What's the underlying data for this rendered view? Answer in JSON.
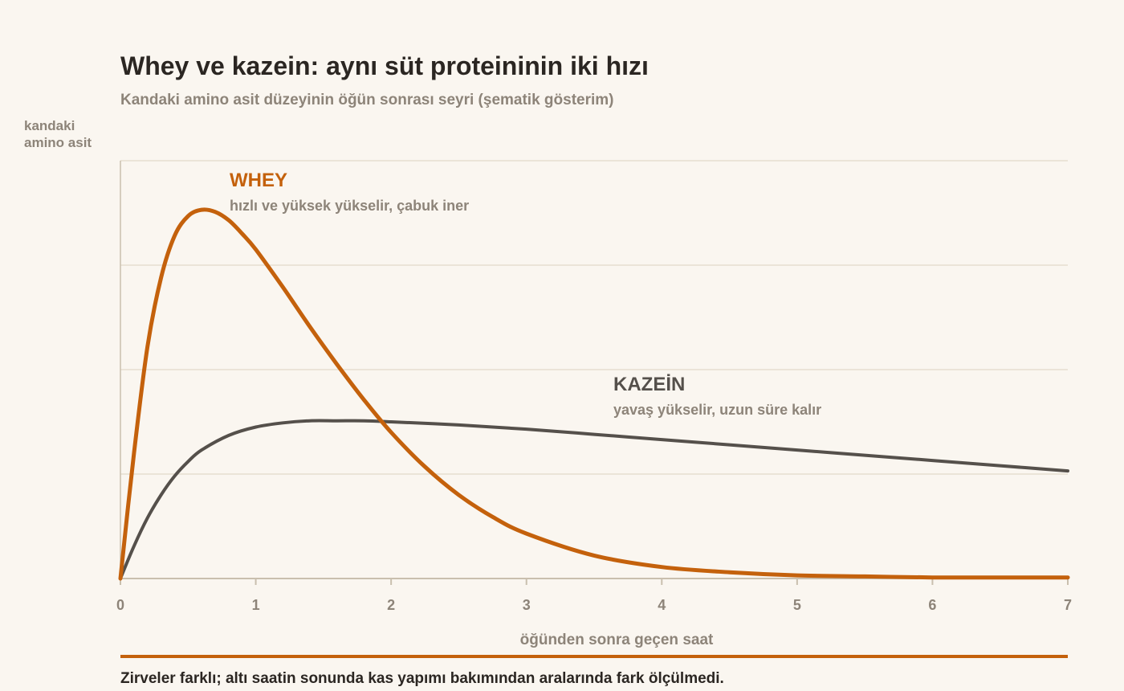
{
  "chart_data": {
    "type": "line",
    "title": "Whey ve kazein: aynı süt proteininin iki hızı",
    "subtitle": "Kandaki amino asit düzeyinin öğün sonrası seyri (şematik gösterim)",
    "xlabel": "öğünden sonra geçen saat",
    "ylabel_lines": [
      "kandaki",
      "amino asit"
    ],
    "xlim": [
      0,
      7
    ],
    "ylim": [
      0,
      4
    ],
    "x_ticks": [
      0,
      1,
      2,
      3,
      4,
      5,
      6,
      7
    ],
    "grid": true,
    "series": [
      {
        "name": "WHEY",
        "note": "hızlı ve yüksek yükselir, çabuk iner",
        "color": "#c4610c",
        "x": [
          0,
          0.1,
          0.2,
          0.3,
          0.4,
          0.5,
          0.6,
          0.7,
          0.8,
          0.9,
          1.0,
          1.2,
          1.4,
          1.6,
          1.8,
          2.0,
          2.25,
          2.5,
          2.75,
          3.0,
          3.5,
          4.0,
          4.5,
          5.0,
          5.5,
          6.0,
          6.5,
          7.0
        ],
        "y": [
          0,
          1.2,
          2.22,
          2.88,
          3.28,
          3.47,
          3.53,
          3.51,
          3.43,
          3.3,
          3.15,
          2.79,
          2.41,
          2.05,
          1.71,
          1.4,
          1.07,
          0.8,
          0.59,
          0.43,
          0.22,
          0.11,
          0.06,
          0.03,
          0.02,
          0.01,
          0.01,
          0.01
        ]
      },
      {
        "name": "KAZEİN",
        "note": "yavaş yükselir, uzun süre kalır",
        "color": "#55504b",
        "x": [
          0,
          0.1,
          0.2,
          0.3,
          0.4,
          0.5,
          0.6,
          0.8,
          1.0,
          1.2,
          1.4,
          1.6,
          1.8,
          2.0,
          2.5,
          3.0,
          3.5,
          4.0,
          4.5,
          5.0,
          5.5,
          6.0,
          6.5,
          7.0
        ],
        "y": [
          0,
          0.31,
          0.58,
          0.8,
          0.98,
          1.12,
          1.23,
          1.37,
          1.45,
          1.49,
          1.51,
          1.51,
          1.51,
          1.5,
          1.47,
          1.43,
          1.38,
          1.33,
          1.28,
          1.23,
          1.18,
          1.13,
          1.08,
          1.03
        ]
      }
    ]
  },
  "footnote": "Zirveler farklı; altı saatin sonunda kas yapımı bakımından aralarında fark ölçülmedi."
}
